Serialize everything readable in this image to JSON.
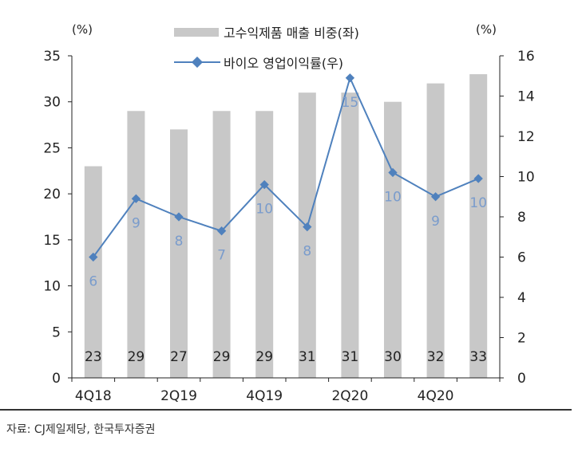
{
  "left_unit": "(%)",
  "right_unit": "(%)",
  "source": "자료: CJ제일제당, 한국투자증권",
  "colors": {
    "bar": "#c8c8c8",
    "line": "#4f81bd",
    "line_label": "#7a9ccc"
  },
  "chart_data": {
    "type": "bar",
    "categories": [
      "4Q18",
      "1Q19",
      "2Q19",
      "3Q19",
      "4Q19",
      "1Q20",
      "2Q20",
      "3Q20",
      "4Q20",
      "1Q21"
    ],
    "x_tick_labels": [
      "4Q18",
      "",
      "2Q19",
      "",
      "4Q19",
      "",
      "2Q20",
      "",
      "4Q20",
      ""
    ],
    "series": [
      {
        "name": "고수익제품 매출 비중(좌)",
        "type": "bar",
        "axis": "left",
        "values": [
          23,
          29,
          27,
          29,
          29,
          31,
          31,
          30,
          32,
          33
        ],
        "labels": [
          "23",
          "29",
          "27",
          "29",
          "29",
          "31",
          "31",
          "30",
          "32",
          "33"
        ]
      },
      {
        "name": "바이오 영업이익률(우)",
        "type": "line",
        "axis": "right",
        "values": [
          6,
          8.9,
          8,
          7.3,
          9.6,
          7.5,
          14.9,
          10.2,
          9,
          9.9
        ],
        "labels": [
          "6",
          "9",
          "8",
          "7",
          "10",
          "8",
          "15",
          "10",
          "9",
          "10"
        ]
      }
    ],
    "y_left": {
      "lim": [
        0,
        35
      ],
      "ticks": [
        "0",
        "5",
        "10",
        "15",
        "20",
        "25",
        "30",
        "35"
      ]
    },
    "y_right": {
      "lim": [
        0,
        16
      ],
      "ticks": [
        "0",
        "2",
        "4",
        "6",
        "8",
        "10",
        "12",
        "14",
        "16"
      ]
    },
    "grid": false,
    "legend": "top"
  }
}
